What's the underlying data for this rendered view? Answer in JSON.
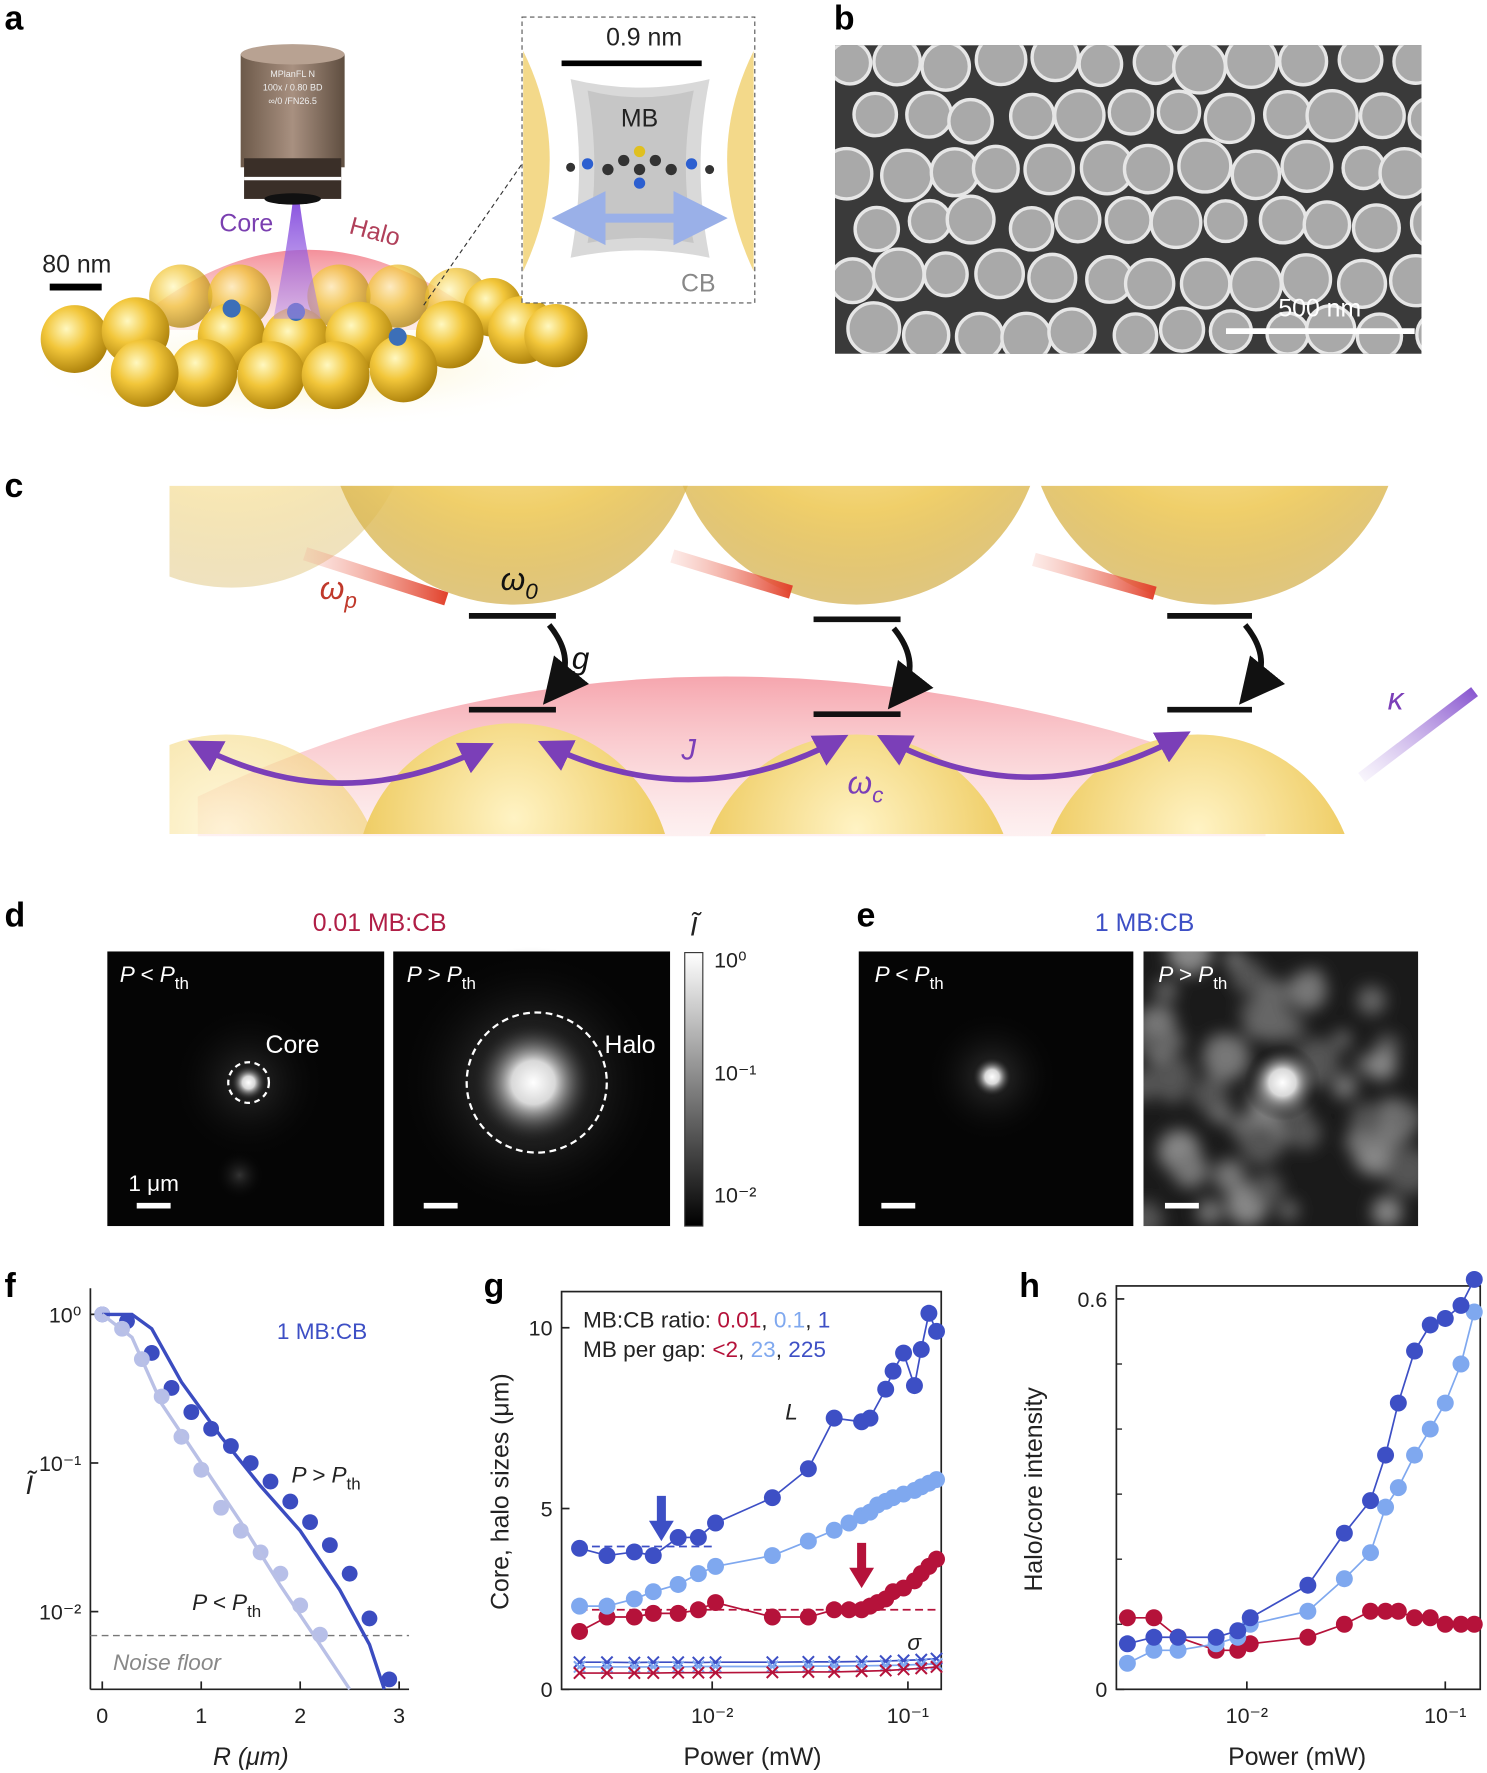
{
  "panels": {
    "a": {
      "letter": "a",
      "objective": [
        "MPlanFL N",
        "100x / 0.80 BD",
        "∞/0 /FN26.5"
      ],
      "core": "Core",
      "halo": "Halo",
      "scale_bar": "80 nm",
      "inset_scale": "0.9 nm",
      "molecule": "MB",
      "host": "CB"
    },
    "b": {
      "letter": "b",
      "scale_bar": "500 nm"
    },
    "c": {
      "letter": "c",
      "pump": {
        "main": "ω",
        "sub": "p"
      },
      "emitter": {
        "main": "ω",
        "sub": "0"
      },
      "coupling": "g",
      "hopping": "J",
      "cavity": {
        "main": "ω",
        "sub": "c"
      },
      "loss": "κ"
    },
    "d": {
      "letter": "d",
      "title": "0.01 MB:CB",
      "below": {
        "main": "P < P",
        "sub": "th"
      },
      "above": {
        "main": "P > P",
        "sub": "th"
      },
      "core": "Core",
      "halo": "Halo",
      "scale_bar": "1 μm",
      "colorbar_label": "Ĩ",
      "colorbar_ticks": [
        "10⁰",
        "10⁻¹",
        "10⁻²"
      ]
    },
    "e": {
      "letter": "e",
      "title": "1 MB:CB",
      "below": {
        "main": "P < P",
        "sub": "th"
      },
      "above": {
        "main": "P > P",
        "sub": "th"
      }
    }
  },
  "chart_data": [
    {
      "type": "scatter",
      "panel": "f",
      "xlabel": "R (μm)",
      "ylabel": "Ĩ",
      "xlim": [
        -0.12,
        3.1
      ],
      "xticks": [
        0,
        1,
        2,
        3
      ],
      "ylim": [
        0.003,
        1.5
      ],
      "yscale": "log",
      "yticks": [
        {
          "value": 1,
          "label": "10⁰"
        },
        {
          "value": 0.1,
          "label": "10⁻¹"
        },
        {
          "value": 0.01,
          "label": "10⁻²"
        }
      ],
      "axes_box": false,
      "series": [
        {
          "color": "#3b4cc0",
          "marker": "o",
          "line": false,
          "x": [
            0,
            0.25,
            0.5,
            0.7,
            0.9,
            1.1,
            1.3,
            1.5,
            1.7,
            1.9,
            2.1,
            2.3,
            2.5,
            2.7,
            2.9
          ],
          "values": [
            1.0,
            0.9,
            0.55,
            0.32,
            0.22,
            0.17,
            0.13,
            0.1,
            0.075,
            0.055,
            0.04,
            0.028,
            0.018,
            0.009,
            0.0035
          ]
        },
        {
          "color": "#b7bfe8",
          "marker": "o",
          "line": false,
          "x": [
            0,
            0.2,
            0.4,
            0.6,
            0.8,
            1.0,
            1.2,
            1.4,
            1.6,
            1.8,
            2.0,
            2.2
          ],
          "values": [
            1.0,
            0.8,
            0.5,
            0.28,
            0.15,
            0.09,
            0.05,
            0.035,
            0.025,
            0.018,
            0.011,
            0.007
          ]
        },
        {
          "color": "#3b4cc0",
          "marker": "none",
          "line": true,
          "x": [
            0,
            0.3,
            0.5,
            0.8,
            1.2,
            1.6,
            2.0,
            2.4,
            2.7,
            2.85
          ],
          "values": [
            1.0,
            1.0,
            0.8,
            0.35,
            0.15,
            0.07,
            0.035,
            0.014,
            0.006,
            0.003
          ]
        },
        {
          "color": "#b9c0e6",
          "marker": "none",
          "line": true,
          "x": [
            0,
            0.3,
            0.6,
            1.0,
            1.4,
            1.8,
            2.2,
            2.5
          ],
          "values": [
            1.0,
            0.7,
            0.25,
            0.1,
            0.04,
            0.015,
            0.006,
            0.003
          ]
        }
      ],
      "noise_floor": 0.0069,
      "annotations": [
        "1 MB:CB",
        {
          "main": "P > P",
          "sub": "th"
        },
        {
          "main": "P < P",
          "sub": "th"
        },
        "Noise floor"
      ]
    },
    {
      "type": "line",
      "panel": "g",
      "xlabel": "Power (mW)",
      "ylabel": "Core, halo sizes (μm)",
      "xlim": [
        0.0017,
        0.148
      ],
      "xscale": "log",
      "xticks": [
        {
          "value": 0.01,
          "label": "10⁻²"
        },
        {
          "value": 0.1,
          "label": "10⁻¹"
        }
      ],
      "ylim": [
        0,
        11
      ],
      "yticks": [
        0,
        5,
        10
      ],
      "axes_box": true,
      "legend_titles": [
        "MB:CB ratio:",
        "MB per gap:"
      ],
      "legend_separator": ", ",
      "series": [
        {
          "name": "0.01",
          "gap": "<2",
          "color": "#b5123a",
          "marker": "o",
          "line": true,
          "x": [
            0.0021,
            0.0029,
            0.004,
            0.005,
            0.0067,
            0.0085,
            0.0104,
            0.0203,
            0.031,
            0.042,
            0.05,
            0.058,
            0.064,
            0.07,
            0.077,
            0.084,
            0.095,
            0.108,
            0.117,
            0.128,
            0.14
          ],
          "values": [
            1.6,
            2.0,
            2.0,
            2.1,
            2.1,
            2.2,
            2.4,
            2.0,
            2.0,
            2.2,
            2.2,
            2.2,
            2.3,
            2.4,
            2.5,
            2.7,
            2.8,
            3.0,
            3.2,
            3.4,
            3.6
          ]
        },
        {
          "name": "0.1",
          "gap": "23",
          "color": "#7fa8ef",
          "marker": "o",
          "line": true,
          "x": [
            0.0021,
            0.0029,
            0.004,
            0.005,
            0.0067,
            0.0085,
            0.0104,
            0.0203,
            0.031,
            0.042,
            0.05,
            0.058,
            0.064,
            0.07,
            0.077,
            0.084,
            0.095,
            0.108,
            0.117,
            0.128,
            0.14
          ],
          "values": [
            2.3,
            2.3,
            2.5,
            2.7,
            2.9,
            3.2,
            3.4,
            3.7,
            4.1,
            4.4,
            4.6,
            4.8,
            4.9,
            5.1,
            5.2,
            5.3,
            5.4,
            5.5,
            5.6,
            5.7,
            5.8
          ]
        },
        {
          "name": "1",
          "gap": "225",
          "color": "#3d4fc5",
          "marker": "o",
          "line": true,
          "x": [
            0.0021,
            0.0029,
            0.004,
            0.005,
            0.0067,
            0.0085,
            0.0104,
            0.0203,
            0.031,
            0.042,
            0.058,
            0.064,
            0.077,
            0.084,
            0.095,
            0.108,
            0.117,
            0.128,
            0.14
          ],
          "values": [
            3.9,
            3.7,
            3.8,
            3.7,
            4.2,
            4.2,
            4.6,
            5.3,
            6.1,
            7.5,
            7.4,
            7.5,
            8.3,
            8.8,
            9.3,
            8.4,
            9.4,
            10.4,
            9.9
          ]
        }
      ],
      "sigma_series": [
        {
          "color": "#3d4fc5",
          "x": [
            0.0021,
            0.0029,
            0.004,
            0.005,
            0.0067,
            0.0085,
            0.0104,
            0.0203,
            0.031,
            0.042,
            0.058,
            0.077,
            0.095,
            0.117,
            0.14
          ],
          "values": [
            0.75,
            0.75,
            0.74,
            0.75,
            0.75,
            0.74,
            0.75,
            0.75,
            0.76,
            0.76,
            0.77,
            0.78,
            0.8,
            0.82,
            0.85
          ]
        },
        {
          "color": "#7fa8ef",
          "x": [
            0.0021,
            0.0029,
            0.004,
            0.005,
            0.0067,
            0.0085,
            0.0104,
            0.0203,
            0.031,
            0.042,
            0.058,
            0.077,
            0.095,
            0.117,
            0.14
          ],
          "values": [
            0.62,
            0.62,
            0.62,
            0.62,
            0.62,
            0.63,
            0.63,
            0.63,
            0.64,
            0.64,
            0.65,
            0.66,
            0.67,
            0.69,
            0.7
          ]
        },
        {
          "color": "#b5123a",
          "x": [
            0.0021,
            0.0029,
            0.004,
            0.005,
            0.0067,
            0.0085,
            0.0104,
            0.0203,
            0.031,
            0.042,
            0.058,
            0.077,
            0.095,
            0.117,
            0.14
          ],
          "values": [
            0.45,
            0.45,
            0.45,
            0.45,
            0.46,
            0.46,
            0.46,
            0.47,
            0.48,
            0.48,
            0.5,
            0.52,
            0.55,
            0.58,
            0.62
          ]
        }
      ],
      "reference_lines": [
        {
          "value": 3.95,
          "x": [
            0.0021,
            0.0104
          ],
          "color": "#3d4fc5"
        },
        {
          "value": 2.2,
          "x": [
            0.0021,
            0.14
          ],
          "color": "#b5123a"
        }
      ],
      "arrows": [
        {
          "x": 0.0055,
          "value": 4.1,
          "color": "#3d4fc5"
        },
        {
          "x": 0.058,
          "value": 2.8,
          "color": "#b5123a"
        }
      ],
      "annotations": [
        "L",
        "σ"
      ]
    },
    {
      "type": "line",
      "panel": "h",
      "xlabel": "Power (mW)",
      "ylabel": "Halo/core intensity",
      "xlim": [
        0.0022,
        0.15
      ],
      "xscale": "log",
      "xticks": [
        {
          "value": 0.01,
          "label": "10⁻²"
        },
        {
          "value": 0.1,
          "label": "10⁻¹"
        }
      ],
      "ylim": [
        0,
        0.62
      ],
      "yticks": [
        0,
        0.6
      ],
      "yticks_minor": [
        0.1,
        0.2,
        0.3,
        0.4,
        0.5
      ],
      "axes_box": true,
      "series": [
        {
          "color": "#b5123a",
          "marker": "o",
          "line": true,
          "x": [
            0.0025,
            0.0034,
            0.0045,
            0.007,
            0.009,
            0.0104,
            0.0203,
            0.031,
            0.042,
            0.05,
            0.058,
            0.07,
            0.084,
            0.1,
            0.12,
            0.14
          ],
          "values": [
            0.11,
            0.11,
            0.08,
            0.06,
            0.06,
            0.07,
            0.08,
            0.1,
            0.12,
            0.12,
            0.12,
            0.11,
            0.11,
            0.1,
            0.1,
            0.1
          ]
        },
        {
          "color": "#7fa8ef",
          "marker": "o",
          "line": true,
          "x": [
            0.0025,
            0.0034,
            0.0045,
            0.007,
            0.009,
            0.0104,
            0.0203,
            0.031,
            0.042,
            0.05,
            0.058,
            0.07,
            0.084,
            0.1,
            0.12,
            0.14
          ],
          "values": [
            0.04,
            0.06,
            0.06,
            0.07,
            0.08,
            0.1,
            0.12,
            0.17,
            0.21,
            0.28,
            0.31,
            0.36,
            0.4,
            0.44,
            0.5,
            0.58
          ]
        },
        {
          "color": "#3d4fc5",
          "marker": "o",
          "line": true,
          "x": [
            0.0025,
            0.0034,
            0.0045,
            0.007,
            0.009,
            0.0104,
            0.0203,
            0.031,
            0.042,
            0.05,
            0.058,
            0.07,
            0.084,
            0.1,
            0.12,
            0.14
          ],
          "values": [
            0.07,
            0.08,
            0.08,
            0.08,
            0.09,
            0.11,
            0.16,
            0.24,
            0.29,
            0.36,
            0.44,
            0.52,
            0.56,
            0.57,
            0.59,
            0.63
          ]
        }
      ]
    }
  ]
}
